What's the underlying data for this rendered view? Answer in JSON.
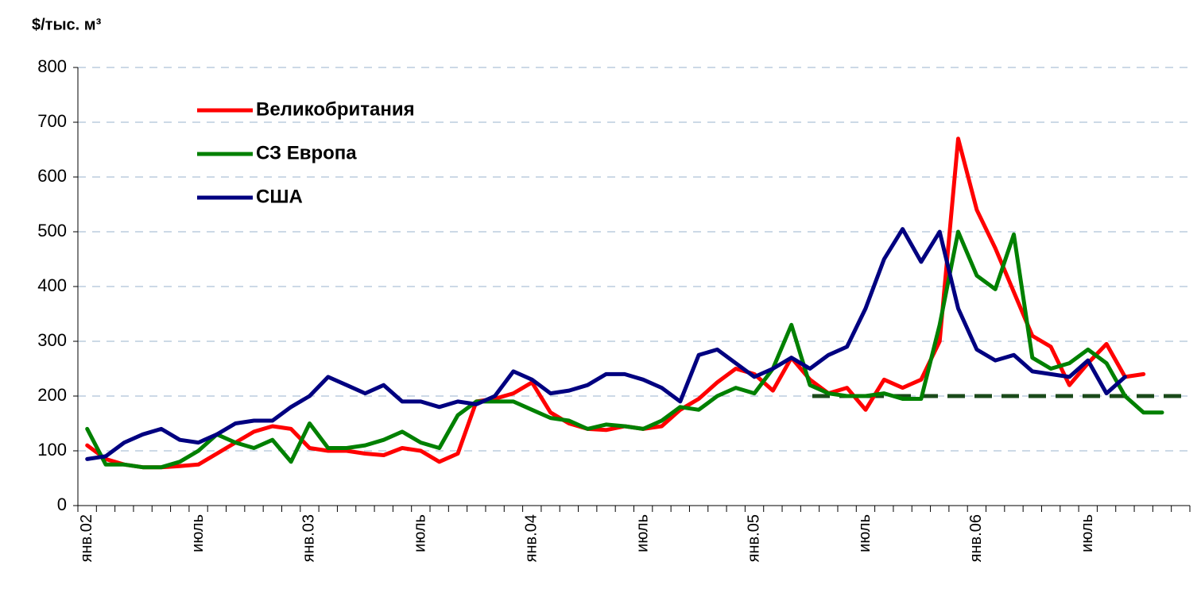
{
  "chart_data": {
    "type": "line",
    "y_label": "$/тыс. м³",
    "categories": [
      "янв.02",
      null,
      null,
      null,
      null,
      null,
      "июль",
      null,
      null,
      null,
      null,
      null,
      "янв.03",
      null,
      null,
      null,
      null,
      null,
      "июль",
      null,
      null,
      null,
      null,
      null,
      "янв.04",
      null,
      null,
      null,
      null,
      null,
      "июль",
      null,
      null,
      null,
      null,
      null,
      "янв.05",
      null,
      null,
      null,
      null,
      null,
      "июль",
      null,
      null,
      null,
      null,
      null,
      "янв.06",
      null,
      null,
      null,
      null,
      null,
      "июль",
      null,
      null,
      null,
      null,
      null
    ],
    "series": [
      {
        "name": "Великобритания",
        "color": "#ff0000",
        "values": [
          110,
          85,
          75,
          70,
          70,
          72,
          75,
          95,
          115,
          135,
          145,
          140,
          105,
          100,
          100,
          95,
          92,
          105,
          100,
          80,
          95,
          190,
          195,
          205,
          225,
          170,
          150,
          140,
          138,
          145,
          140,
          145,
          175,
          195,
          225,
          250,
          240,
          210,
          270,
          230,
          205,
          215,
          175,
          230,
          215,
          230,
          300,
          670,
          540,
          470,
          390,
          310,
          290,
          220,
          260,
          295,
          235,
          240,
          null,
          null
        ]
      },
      {
        "name": "СЗ Европа",
        "color": "#008000",
        "values": [
          140,
          75,
          75,
          70,
          70,
          80,
          100,
          130,
          115,
          105,
          120,
          80,
          150,
          105,
          105,
          110,
          120,
          135,
          115,
          105,
          165,
          190,
          190,
          190,
          175,
          160,
          155,
          140,
          148,
          145,
          140,
          155,
          180,
          175,
          200,
          215,
          205,
          250,
          330,
          220,
          205,
          200,
          200,
          205,
          195,
          195,
          330,
          500,
          420,
          395,
          495,
          270,
          250,
          260,
          285,
          260,
          200,
          170,
          170,
          null
        ]
      },
      {
        "name": "США",
        "color": "#000080",
        "values": [
          85,
          90,
          115,
          130,
          140,
          120,
          115,
          130,
          150,
          155,
          155,
          180,
          200,
          235,
          220,
          205,
          220,
          190,
          190,
          180,
          190,
          185,
          200,
          245,
          230,
          205,
          210,
          220,
          240,
          240,
          230,
          215,
          190,
          275,
          285,
          260,
          235,
          250,
          270,
          250,
          275,
          290,
          360,
          450,
          505,
          445,
          500,
          360,
          285,
          265,
          275,
          245,
          240,
          235,
          265,
          205,
          235,
          null,
          null,
          null
        ]
      }
    ],
    "reference_line": {
      "value": 200,
      "color": "#1a4a1a"
    },
    "ylim": [
      0,
      800
    ],
    "yticks": [
      0,
      100,
      200,
      300,
      400,
      500,
      600,
      700,
      800
    ],
    "grid": true
  }
}
